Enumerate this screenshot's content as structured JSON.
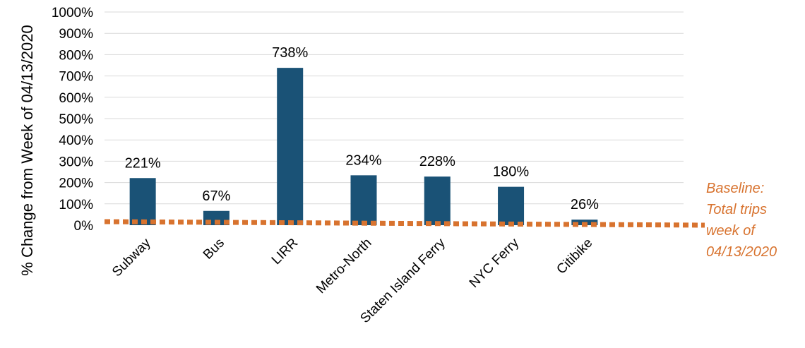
{
  "chart_data": {
    "type": "bar",
    "categories": [
      "Subway",
      "Bus",
      "LIRR",
      "Metro-North",
      "Staten Island Ferry",
      "NYC Ferry",
      "Citibike"
    ],
    "values": [
      221,
      67,
      738,
      234,
      228,
      180,
      26
    ],
    "data_labels": [
      "221%",
      "67%",
      "738%",
      "234%",
      "228%",
      "180%",
      "26%"
    ],
    "ylabel": "% Change from Week of 04/13/2020",
    "ylim": [
      0,
      1000
    ],
    "yticks": [
      "0%",
      "100%",
      "200%",
      "300%",
      "400%",
      "500%",
      "600%",
      "700%",
      "800%",
      "900%",
      "1000%"
    ],
    "grid": true,
    "annotation": {
      "lines": [
        "Baseline:",
        "Total trips",
        "week of",
        "04/13/2020"
      ]
    },
    "colors": {
      "bar": "#1a5276",
      "baseline": "#d8732f",
      "grid": "#d9d9d9"
    }
  }
}
